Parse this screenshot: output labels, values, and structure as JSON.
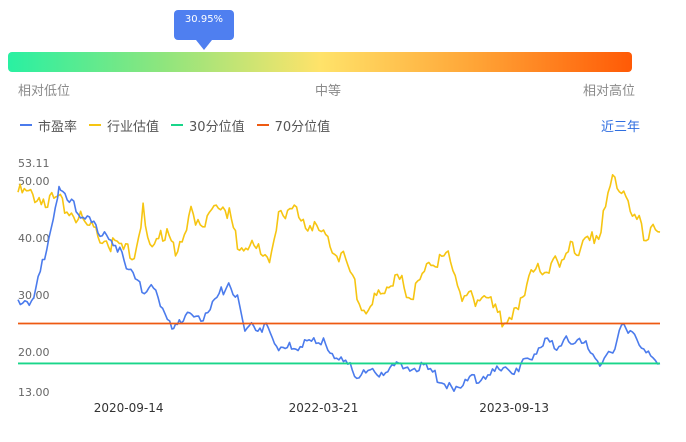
{
  "percentile": {
    "label": "30.95%",
    "value": 0.3095
  },
  "gauge": {
    "low_label": "相对低位",
    "mid_label": "中等",
    "high_label": "相对高位",
    "colors": [
      "#29f0a2",
      "#ffe36a",
      "#ff5a06"
    ]
  },
  "legend": {
    "items": [
      {
        "label": "市盈率",
        "color": "#4b7bec"
      },
      {
        "label": "行业估值",
        "color": "#f6c512"
      },
      {
        "label": "30分位值",
        "color": "#19d68a"
      },
      {
        "label": "70分位值",
        "color": "#ee5a12"
      }
    ]
  },
  "period_button": "近三年",
  "chart_data": {
    "type": "line",
    "title": "",
    "xlabel": "",
    "ylabel": "",
    "ylim": [
      13.0,
      53.11
    ],
    "ytick_labels": [
      "53.11",
      "50.00",
      "40.00",
      "30.00",
      "20.00",
      "13.00"
    ],
    "ytick_values": [
      53.11,
      50,
      40,
      30,
      20,
      13
    ],
    "xlim": [
      "2019-11-05",
      "2024-10-31"
    ],
    "xtick_labels": [
      "2020-09-14",
      "2022-03-21",
      "2023-09-13"
    ],
    "xtick_values": [
      "2020-09-14",
      "2022-03-21",
      "2023-09-13"
    ],
    "reference_lines": [
      {
        "name": "30分位值",
        "value": 18.0
      },
      {
        "name": "70分位值",
        "value": 25.0
      }
    ],
    "series": [
      {
        "name": "市盈率",
        "x": [
          "2019-11-05",
          "2019-12-20",
          "2020-02-25",
          "2020-03-05",
          "2020-04-05",
          "2020-05-20",
          "2020-06-25",
          "2020-07-20",
          "2020-08-20",
          "2020-09-14",
          "2020-10-22",
          "2020-11-30",
          "2021-01-15",
          "2021-01-25",
          "2021-02-10",
          "2021-03-12",
          "2021-04-20",
          "2021-05-10",
          "2021-06-10",
          "2021-06-25",
          "2021-07-20",
          "2021-08-10",
          "2021-09-10",
          "2021-10-15",
          "2021-11-20",
          "2022-01-20",
          "2022-02-28",
          "2022-03-21",
          "2022-05-10",
          "2022-06-30",
          "2022-08-20",
          "2022-10-20",
          "2022-12-30",
          "2023-02-20",
          "2023-03-20",
          "2023-05-10",
          "2023-07-20",
          "2023-09-13",
          "2023-10-28",
          "2023-12-10",
          "2024-01-25",
          "2024-02-15",
          "2024-04-10",
          "2024-05-20",
          "2024-06-25",
          "2024-07-20",
          "2024-08-20",
          "2024-09-15",
          "2024-10-31"
        ],
        "y": [
          29.0,
          29.0,
          47.0,
          49.0,
          46.0,
          43.0,
          41.0,
          40.0,
          38.0,
          34.0,
          31.0,
          31.0,
          23.6,
          24.0,
          26.0,
          27.0,
          26.0,
          28.0,
          31.0,
          33.0,
          29.0,
          24.0,
          24.5,
          24.0,
          20.5,
          21.0,
          22.0,
          21.5,
          18.5,
          16.0,
          16.5,
          17.5,
          17.5,
          15.0,
          14.0,
          15.0,
          16.5,
          17.0,
          19.0,
          22.0,
          21.0,
          22.5,
          21.0,
          18.0,
          21.0,
          25.0,
          23.0,
          20.0,
          18.0
        ]
      },
      {
        "name": "行业估值",
        "x": [
          "2019-11-05",
          "2020-01-10",
          "2020-03-10",
          "2020-05-20",
          "2020-07-25",
          "2020-09-30",
          "2020-10-25",
          "2020-11-20",
          "2020-12-20",
          "2021-01-25",
          "2021-03-10",
          "2021-04-25",
          "2021-06-15",
          "2021-07-20",
          "2021-09-05",
          "2021-10-25",
          "2021-11-20",
          "2022-01-10",
          "2022-03-21",
          "2022-05-10",
          "2022-07-20",
          "2022-08-30",
          "2022-10-10",
          "2022-12-01",
          "2023-01-20",
          "2023-03-10",
          "2023-04-25",
          "2023-06-20",
          "2023-08-10",
          "2023-09-13",
          "2023-10-25",
          "2023-12-15",
          "2024-01-20",
          "2024-02-20",
          "2024-03-20",
          "2024-05-10",
          "2024-06-25",
          "2024-07-20",
          "2024-08-20",
          "2024-09-15",
          "2024-10-31"
        ],
        "y": [
          48.0,
          47.0,
          46.0,
          42.0,
          39.0,
          37.0,
          45.0,
          37.0,
          41.0,
          38.0,
          44.0,
          43.0,
          46.0,
          39.0,
          38.0,
          37.0,
          45.0,
          44.0,
          40.0,
          37.0,
          27.0,
          31.0,
          33.0,
          30.0,
          36.0,
          37.0,
          29.0,
          30.0,
          25.0,
          27.0,
          33.0,
          35.0,
          36.0,
          39.0,
          38.0,
          41.0,
          51.0,
          47.0,
          44.0,
          41.0,
          41.0
        ]
      }
    ]
  }
}
